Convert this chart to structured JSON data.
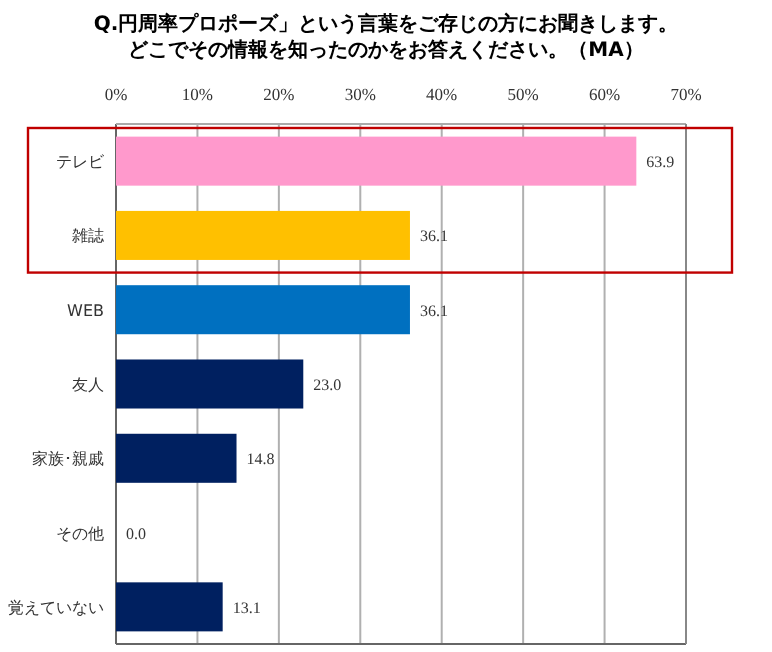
{
  "chart_data": {
    "type": "bar",
    "orientation": "horizontal",
    "title": "Q.円周率プロポーズ」という言葉をご存じの方にお聞きします。",
    "subtitle": "どこでその情報を知ったのかをお答えください。（MA）",
    "categories": [
      "テレビ",
      "雑誌",
      "WEB",
      "友人",
      "家族･親戚",
      "その他",
      "覚えていない"
    ],
    "values": [
      63.9,
      36.1,
      36.1,
      23.0,
      14.8,
      0.0,
      13.1
    ],
    "colors": [
      "#ff99cc",
      "#ffc000",
      "#0070c0",
      "#002060",
      "#002060",
      "#002060",
      "#002060"
    ],
    "value_labels": [
      "63.9",
      "36.1",
      "36.1",
      "23.0",
      "14.8",
      "0.0",
      "13.1"
    ],
    "xlim": [
      0,
      70
    ],
    "xticks": [
      {
        "value": 0,
        "label": "0%"
      },
      {
        "value": 10,
        "label": "10%"
      },
      {
        "value": 20,
        "label": "20%"
      },
      {
        "value": 30,
        "label": "30%"
      },
      {
        "value": 40,
        "label": "40%"
      },
      {
        "value": 50,
        "label": "50%"
      },
      {
        "value": 60,
        "label": "60%"
      },
      {
        "value": 70,
        "label": "70%"
      }
    ],
    "grid": "x"
  }
}
